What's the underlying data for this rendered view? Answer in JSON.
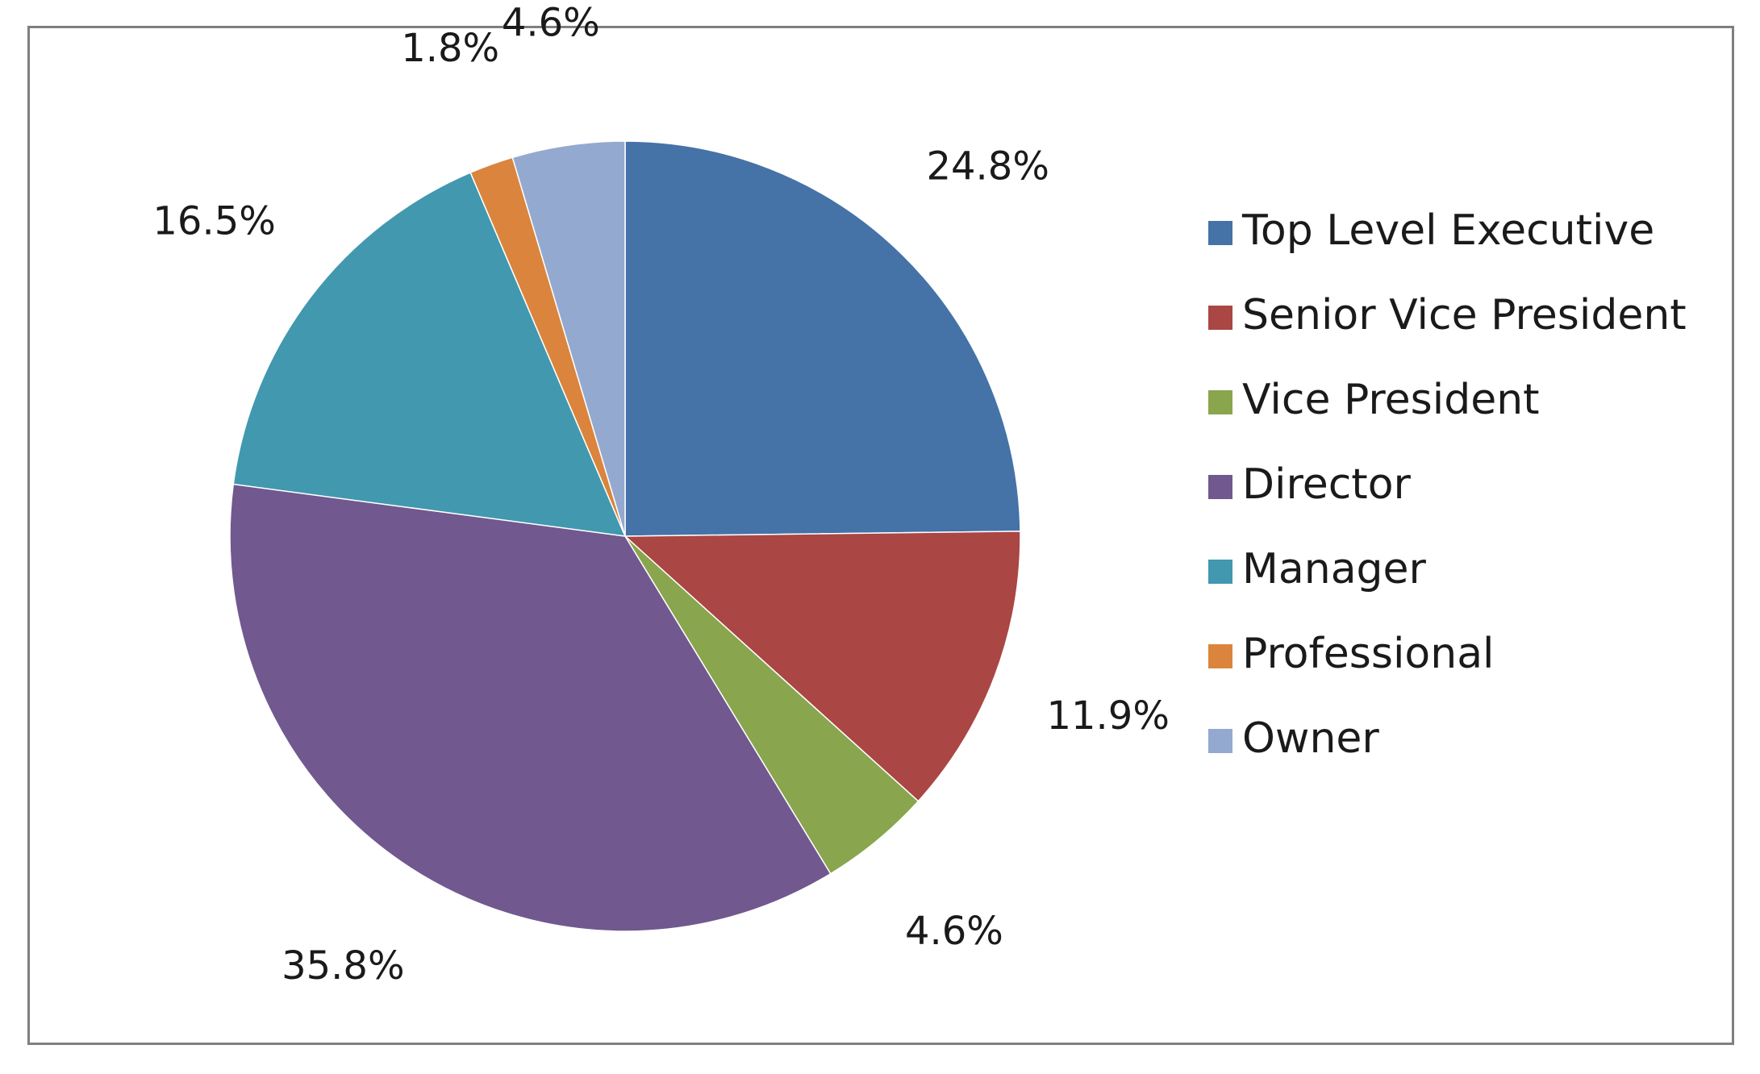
{
  "chart_data": {
    "type": "pie",
    "title": "",
    "start_angle_deg": 0,
    "direction": "clockwise",
    "legend_position": "right",
    "slices": [
      {
        "label": "Top Level Executive",
        "value": 24.8,
        "data_label": "24.8%",
        "color": "#4572A7"
      },
      {
        "label": "Senior Vice President",
        "value": 11.9,
        "data_label": "11.9%",
        "color": "#AA4643"
      },
      {
        "label": "Vice President",
        "value": 4.6,
        "data_label": "4.6%",
        "color": "#89A54E"
      },
      {
        "label": "Director",
        "value": 35.8,
        "data_label": "35.8%",
        "color": "#71588F"
      },
      {
        "label": "Manager",
        "value": 16.5,
        "data_label": "16.5%",
        "color": "#4198AF"
      },
      {
        "label": "Professional",
        "value": 1.8,
        "data_label": "1.8%",
        "color": "#DB843D"
      },
      {
        "label": "Owner",
        "value": 4.6,
        "data_label": "4.6%",
        "color": "#93A9CF"
      }
    ]
  }
}
